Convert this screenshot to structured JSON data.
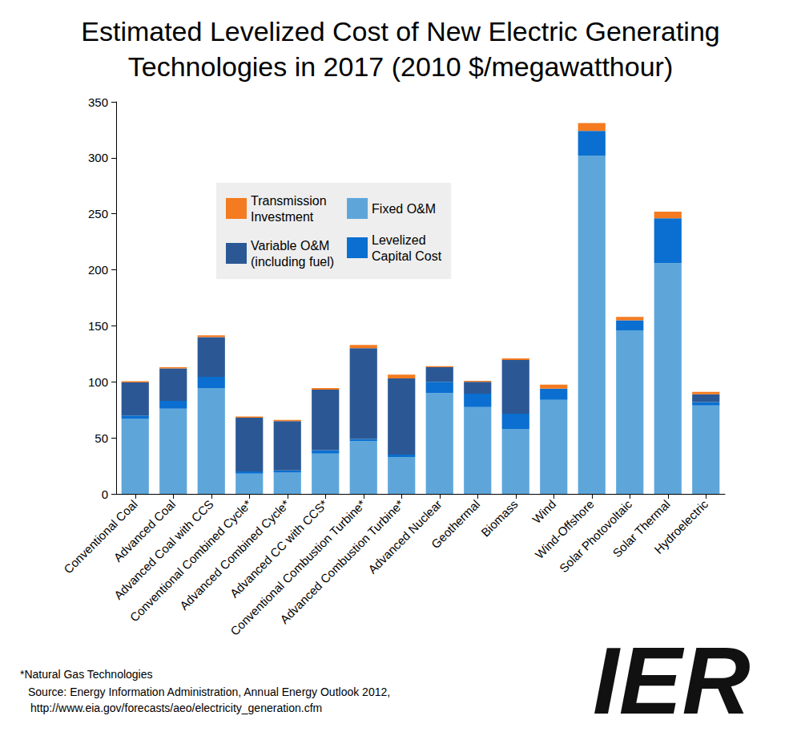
{
  "chart_data": {
    "type": "bar",
    "title": "Estimated Levelized Cost of New Electric Generating\nTechnologies in 2017 (2010 $/megawatthour)",
    "categories": [
      "Conventional Coal",
      "Advanced Coal",
      "Advanced Coal with CCS",
      "Conventional Combined Cycle*",
      "Advanced Combined Cycle*",
      "Advanced CC with CCS*",
      "Conventional Combustion Turbine*",
      "Advanced Combustion Turbine*",
      "Advanced Nuclear",
      "Geothermal",
      "Biomass",
      "Wind",
      "Wind-Offshore",
      "Solar Photovoltaic",
      "Solar Thermal",
      "Hydroelectric"
    ],
    "series": [
      {
        "name": "Fixed O&M",
        "color": "#5ea6da",
        "values": [
          67,
          76,
          94.5,
          18,
          19,
          36,
          47,
          33,
          90,
          77.5,
          58,
          84,
          302,
          146,
          206,
          79
        ]
      },
      {
        "name": "Levelized\nCapital Cost",
        "color": "#0a6fd0",
        "values": [
          3,
          7,
          10,
          2,
          2,
          3,
          2,
          2,
          10,
          12,
          13.5,
          10,
          22,
          9,
          40,
          3
        ]
      },
      {
        "name": "Variable O&M\n(including fuel)",
        "color": "#2b5895",
        "values": [
          29.5,
          29,
          35.5,
          48,
          44,
          54,
          81,
          68,
          13,
          10.5,
          48,
          0,
          0,
          0,
          0,
          7
        ]
      },
      {
        "name": "Transmission\nInvestment",
        "color": "#f47b20",
        "values": [
          1,
          1,
          1.5,
          1,
          1,
          1.5,
          3,
          3.5,
          1,
          1,
          1.5,
          3.5,
          7,
          3,
          6,
          2
        ]
      }
    ],
    "ylim": [
      0,
      350
    ],
    "yticks": [
      0,
      50,
      100,
      150,
      200,
      250,
      300,
      350
    ],
    "grid": false,
    "stacked": true,
    "legend": "upper left",
    "notes": [
      "*Natural Gas Technologies",
      "Source: Energy Information Administration, Annual Energy Outlook 2012,",
      "http://www.eia.gov/forecasts/aeo/electricity_generation.cfm"
    ],
    "logo": "IER"
  }
}
